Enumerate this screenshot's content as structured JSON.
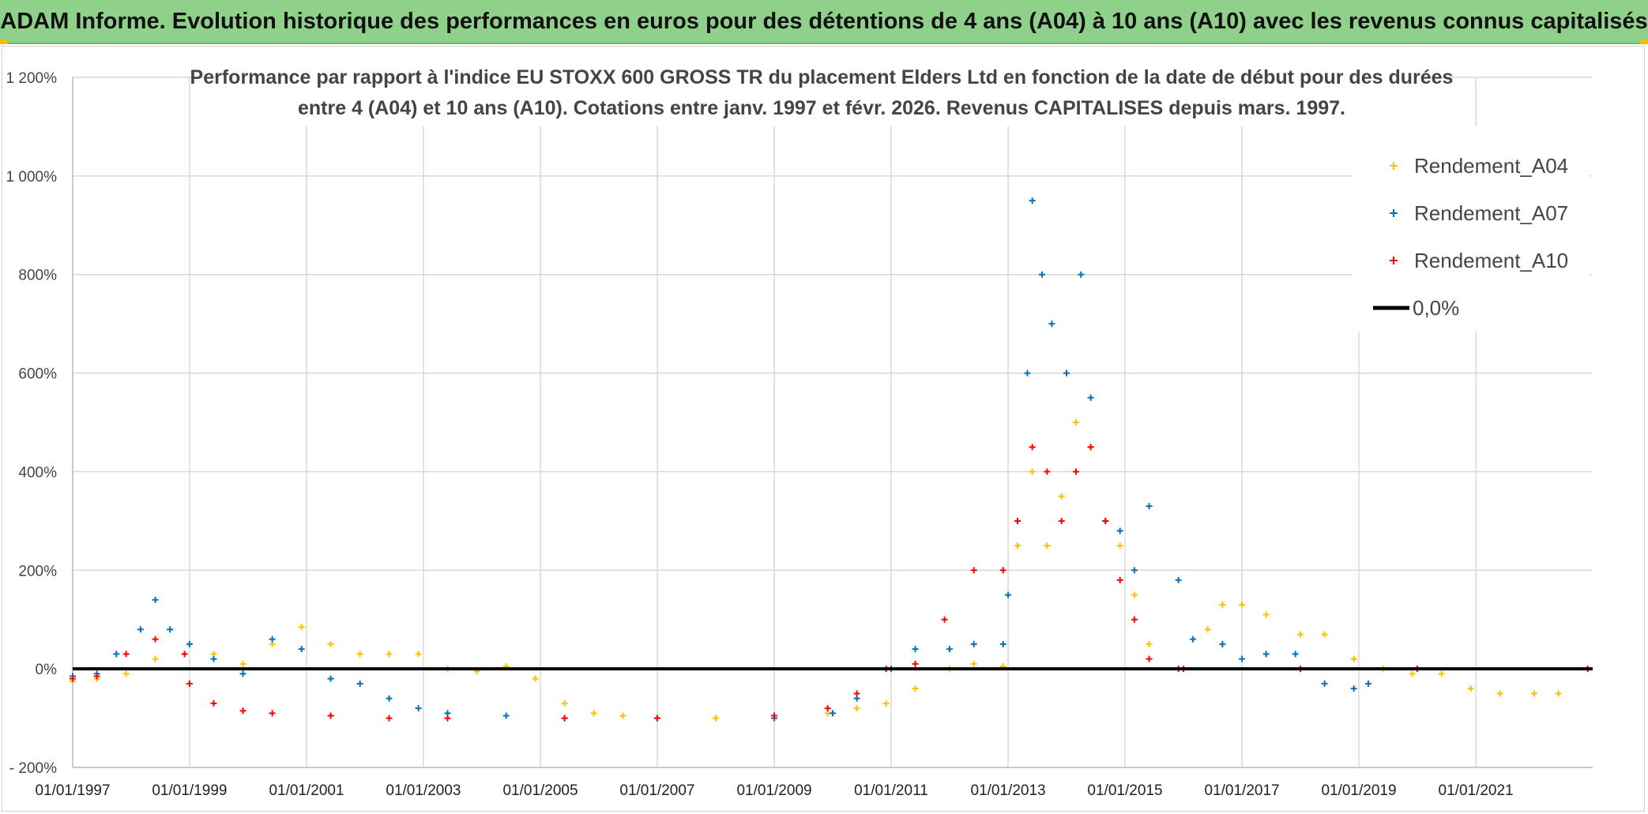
{
  "banner": {
    "title": "ADAM Informe. Evolution historique des performances en euros pour des détentions de 4 ans (A04) à 10 ans (A10) avec les revenus connus capitalisés"
  },
  "chart_data": {
    "type": "scatter",
    "subtitle_line1": "Performance par rapport à l'indice EU STOXX 600 GROSS TR  du placement Elders Ltd en fonction de la date de début pour des durées",
    "subtitle_line2": "entre 4 (A04) et 10 ans (A10). Cotations entre janv. 1997 et févr. 2026. Revenus CAPITALISES depuis mars. 1997.",
    "xlabel": "",
    "ylabel": "",
    "x_range": [
      "1997-01-01",
      "2023-01-01"
    ],
    "y_range": [
      -200,
      1200
    ],
    "y_ticks": [
      -200,
      0,
      200,
      400,
      600,
      800,
      1000,
      1200
    ],
    "y_tick_labels": [
      "- 200%",
      "0%",
      "200%",
      "400%",
      "600%",
      "800%",
      "1 000%",
      "1 200%"
    ],
    "x_ticks": [
      "1997-01-01",
      "1999-01-01",
      "2001-01-01",
      "2003-01-01",
      "2005-01-01",
      "2007-01-01",
      "2009-01-01",
      "2011-01-01",
      "2013-01-01",
      "2015-01-01",
      "2017-01-01",
      "2019-01-01",
      "2021-01-01"
    ],
    "x_tick_labels": [
      "01/01/1997",
      "01/01/1999",
      "01/01/2001",
      "01/01/2003",
      "01/01/2005",
      "01/01/2007",
      "01/01/2009",
      "01/01/2011",
      "01/01/2013",
      "01/01/2015",
      "01/01/2017",
      "01/01/2019",
      "01/01/2021"
    ],
    "grid": true,
    "legend_position": "top-right",
    "series": [
      {
        "name": "Rendement_A04",
        "color": "#ffc000",
        "marker": "plus",
        "points": [
          [
            "1997-01-01",
            -25
          ],
          [
            "1997-06-01",
            -20
          ],
          [
            "1997-12-01",
            -10
          ],
          [
            "1998-06-01",
            20
          ],
          [
            "1998-12-01",
            30
          ],
          [
            "1999-06-01",
            30
          ],
          [
            "1999-12-01",
            10
          ],
          [
            "2000-06-01",
            50
          ],
          [
            "2000-12-01",
            85
          ],
          [
            "2001-06-01",
            50
          ],
          [
            "2001-12-01",
            30
          ],
          [
            "2002-06-01",
            30
          ],
          [
            "2002-12-01",
            30
          ],
          [
            "2003-06-01",
            0
          ],
          [
            "2003-12-01",
            -5
          ],
          [
            "2004-06-01",
            5
          ],
          [
            "2004-12-01",
            -20
          ],
          [
            "2005-06-01",
            -70
          ],
          [
            "2005-12-01",
            -90
          ],
          [
            "2006-06-01",
            -95
          ],
          [
            "2007-01-01",
            -100
          ],
          [
            "2008-01-01",
            -100
          ],
          [
            "2009-01-01",
            -100
          ],
          [
            "2009-12-01",
            -90
          ],
          [
            "2010-06-01",
            -80
          ],
          [
            "2010-12-01",
            -70
          ],
          [
            "2011-06-01",
            -40
          ],
          [
            "2012-01-01",
            0
          ],
          [
            "2012-06-01",
            10
          ],
          [
            "2012-12-01",
            5
          ],
          [
            "2013-01-01",
            150
          ],
          [
            "2013-03-01",
            250
          ],
          [
            "2013-06-01",
            400
          ],
          [
            "2013-09-01",
            250
          ],
          [
            "2013-12-01",
            350
          ],
          [
            "2014-03-01",
            500
          ],
          [
            "2014-06-01",
            450
          ],
          [
            "2014-09-01",
            300
          ],
          [
            "2014-12-01",
            250
          ],
          [
            "2015-03-01",
            150
          ],
          [
            "2015-06-01",
            50
          ],
          [
            "2015-12-01",
            0
          ],
          [
            "2016-06-01",
            80
          ],
          [
            "2016-09-01",
            130
          ],
          [
            "2017-01-01",
            130
          ],
          [
            "2017-06-01",
            110
          ],
          [
            "2018-01-01",
            70
          ],
          [
            "2018-06-01",
            70
          ],
          [
            "2018-12-01",
            20
          ],
          [
            "2019-06-01",
            0
          ],
          [
            "2019-12-01",
            -10
          ],
          [
            "2020-06-01",
            -10
          ],
          [
            "2020-12-01",
            -40
          ],
          [
            "2021-06-01",
            -50
          ],
          [
            "2022-01-01",
            -50
          ],
          [
            "2022-06-01",
            -50
          ]
        ]
      },
      {
        "name": "Rendement_A07",
        "color": "#0070c0",
        "marker": "plus",
        "points": [
          [
            "1997-01-01",
            -15
          ],
          [
            "1997-06-01",
            -10
          ],
          [
            "1997-10-01",
            30
          ],
          [
            "1998-03-01",
            80
          ],
          [
            "1998-06-01",
            140
          ],
          [
            "1998-09-01",
            80
          ],
          [
            "1999-01-01",
            50
          ],
          [
            "1999-06-01",
            20
          ],
          [
            "1999-12-01",
            -10
          ],
          [
            "2000-06-01",
            60
          ],
          [
            "2000-12-01",
            40
          ],
          [
            "2001-06-01",
            -20
          ],
          [
            "2001-12-01",
            -30
          ],
          [
            "2002-06-01",
            -60
          ],
          [
            "2002-12-01",
            -80
          ],
          [
            "2003-06-01",
            -90
          ],
          [
            "2004-06-01",
            -95
          ],
          [
            "2005-06-01",
            -100
          ],
          [
            "2007-01-01",
            -100
          ],
          [
            "2009-01-01",
            -100
          ],
          [
            "2010-01-01",
            -90
          ],
          [
            "2010-06-01",
            -60
          ],
          [
            "2011-01-01",
            0
          ],
          [
            "2011-06-01",
            40
          ],
          [
            "2012-01-01",
            40
          ],
          [
            "2012-06-01",
            50
          ],
          [
            "2012-12-01",
            50
          ],
          [
            "2013-01-01",
            150
          ],
          [
            "2013-03-01",
            300
          ],
          [
            "2013-05-01",
            600
          ],
          [
            "2013-06-01",
            950
          ],
          [
            "2013-08-01",
            800
          ],
          [
            "2013-10-01",
            700
          ],
          [
            "2014-01-01",
            600
          ],
          [
            "2014-04-01",
            800
          ],
          [
            "2014-06-01",
            550
          ],
          [
            "2014-09-01",
            300
          ],
          [
            "2014-12-01",
            280
          ],
          [
            "2015-03-01",
            200
          ],
          [
            "2015-06-01",
            330
          ],
          [
            "2015-12-01",
            180
          ],
          [
            "2016-03-01",
            60
          ],
          [
            "2016-09-01",
            50
          ],
          [
            "2017-01-01",
            20
          ],
          [
            "2017-06-01",
            30
          ],
          [
            "2017-12-01",
            30
          ],
          [
            "2018-06-01",
            -30
          ],
          [
            "2018-12-01",
            -40
          ],
          [
            "2019-03-01",
            -30
          ]
        ]
      },
      {
        "name": "Rendement_A10",
        "color": "#ff0000",
        "marker": "plus",
        "points": [
          [
            "1997-01-01",
            -20
          ],
          [
            "1997-06-01",
            -15
          ],
          [
            "1997-12-01",
            30
          ],
          [
            "1998-06-01",
            60
          ],
          [
            "1998-12-01",
            30
          ],
          [
            "1999-01-01",
            -30
          ],
          [
            "1999-06-01",
            -70
          ],
          [
            "1999-12-01",
            -85
          ],
          [
            "2000-06-01",
            -90
          ],
          [
            "2001-06-01",
            -95
          ],
          [
            "2002-06-01",
            -100
          ],
          [
            "2003-06-01",
            -100
          ],
          [
            "2005-06-01",
            -100
          ],
          [
            "2007-01-01",
            -100
          ],
          [
            "2009-01-01",
            -95
          ],
          [
            "2009-12-01",
            -80
          ],
          [
            "2010-06-01",
            -50
          ],
          [
            "2010-12-01",
            0
          ],
          [
            "2011-06-01",
            10
          ],
          [
            "2011-12-01",
            100
          ],
          [
            "2012-06-01",
            200
          ],
          [
            "2012-12-01",
            200
          ],
          [
            "2013-03-01",
            300
          ],
          [
            "2013-06-01",
            450
          ],
          [
            "2013-09-01",
            400
          ],
          [
            "2013-12-01",
            300
          ],
          [
            "2014-03-01",
            400
          ],
          [
            "2014-06-01",
            450
          ],
          [
            "2014-09-01",
            300
          ],
          [
            "2014-12-01",
            180
          ],
          [
            "2015-03-01",
            100
          ],
          [
            "2015-06-01",
            20
          ],
          [
            "2015-12-01",
            0
          ],
          [
            "2016-01-01",
            0
          ],
          [
            "2018-01-01",
            0
          ],
          [
            "2020-01-01",
            0
          ],
          [
            "2022-12-01",
            0
          ]
        ]
      },
      {
        "name": "0,0%",
        "color": "#000000",
        "marker": "line",
        "points": [
          [
            "1997-01-01",
            0
          ],
          [
            "2023-01-01",
            0
          ]
        ]
      }
    ]
  }
}
